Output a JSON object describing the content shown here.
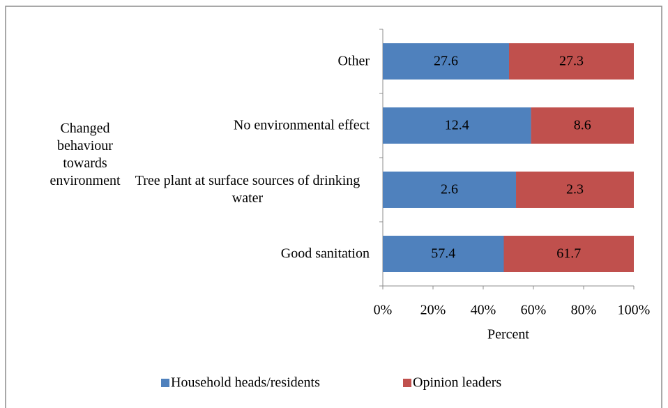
{
  "chart_data": {
    "type": "bar",
    "orientation": "horizontal",
    "stacking": "percent",
    "y_group_label": "Changed behaviour towards environment",
    "categories": [
      "Other",
      "No environmental effect",
      "Tree plant at surface sources of drinking water",
      "Good sanitation"
    ],
    "series": [
      {
        "name": "Household heads/residents",
        "color": "#4f81bd",
        "values": [
          27.6,
          12.4,
          2.6,
          57.4
        ]
      },
      {
        "name": "Opinion leaders",
        "color": "#c0504d",
        "values": [
          27.3,
          8.6,
          2.3,
          61.7
        ]
      }
    ],
    "xlabel": "Percent",
    "xlim": [
      0,
      100
    ],
    "xticks": [
      {
        "value": 0,
        "label": "0%"
      },
      {
        "value": 20,
        "label": "20%"
      },
      {
        "value": 40,
        "label": "40%"
      },
      {
        "value": 60,
        "label": "60%"
      },
      {
        "value": 80,
        "label": "80%"
      },
      {
        "value": 100,
        "label": "100%"
      }
    ],
    "legend": "bottom"
  }
}
